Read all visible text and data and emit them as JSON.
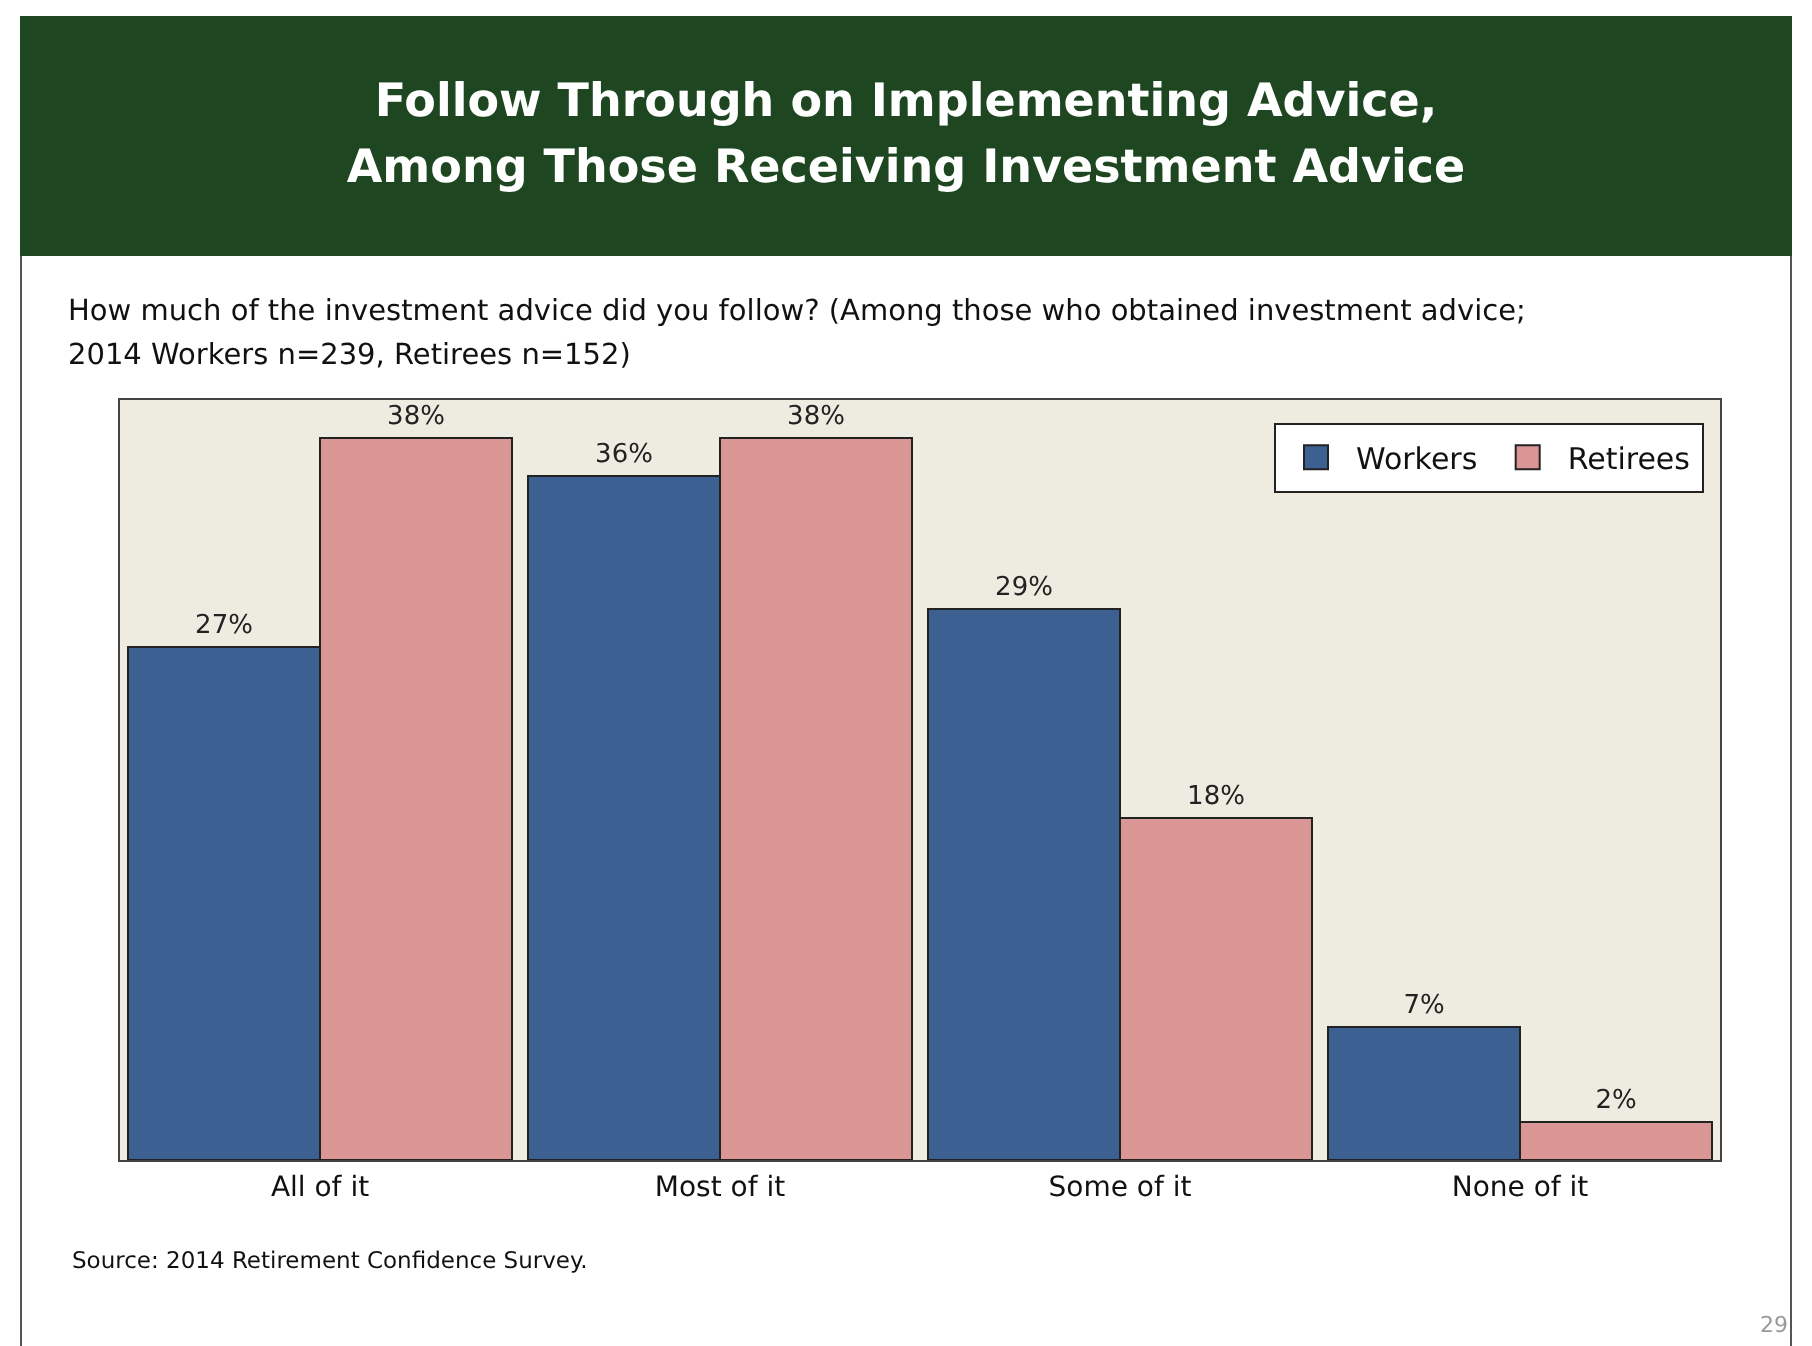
{
  "chart_data": {
    "type": "bar",
    "title": "Follow Through on Implementing Advice,\nAmong Those Receiving Investment Advice",
    "subtitle": "How much of the investment advice did you follow? (Among those who obtained investment advice;\n2014 Workers n=239, Retirees n=152)",
    "categories": [
      "All of it",
      "Most of it",
      "Some of it",
      "None of it"
    ],
    "series": [
      {
        "name": "Workers",
        "color": "#3b6091",
        "values": [
          27,
          36,
          29,
          7
        ],
        "value_labels": [
          "27%",
          "36%",
          "29%",
          "7%"
        ]
      },
      {
        "name": "Retirees",
        "color": "#d99694",
        "values": [
          38,
          38,
          18,
          2
        ],
        "value_labels": [
          "38%",
          "38%",
          "18%",
          "2%"
        ]
      }
    ],
    "legend": "top right",
    "annotations": [
      "Source:  2014 Retirement Confidence Survey.",
      "29"
    ]
  }
}
